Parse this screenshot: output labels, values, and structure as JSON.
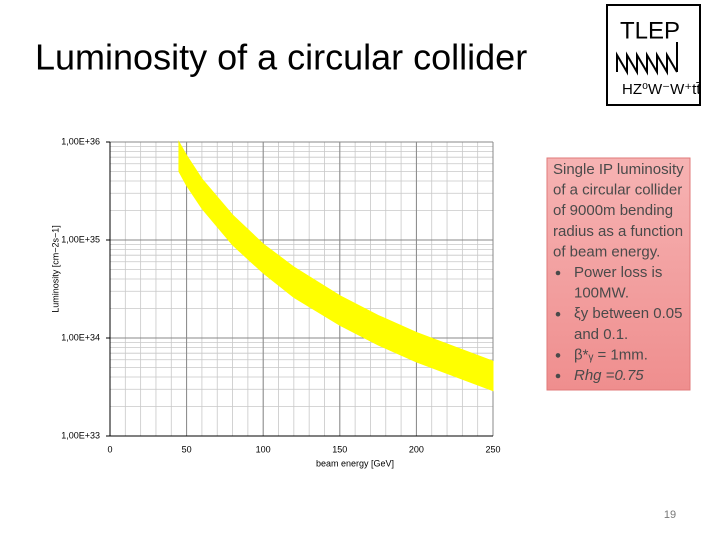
{
  "header": {
    "title": "Luminosity of a circular collider",
    "logo": {
      "name": "TLEP",
      "subtitle": "HZ⁰W⁻W⁺tt̄"
    }
  },
  "chart_data": {
    "type": "band",
    "x_label": "beam energy [GeV]",
    "y_label": "Luminosity [cm−2s−1]",
    "x": [
      45,
      50,
      60,
      80,
      100,
      120,
      150,
      175,
      200,
      250
    ],
    "band": {
      "color": "#ffff00",
      "upper": [
        1e+36,
        7.3e+35,
        4.2e+35,
        1.8e+35,
        9.1e+34,
        5.3e+34,
        2.7e+34,
        1.7e+34,
        1.14e+34,
        5.8e+33
      ],
      "lower": [
        5e+35,
        3.6e+35,
        2.1e+35,
        8.9e+34,
        4.6e+34,
        2.6e+34,
        1.35e+34,
        8.5e+33,
        5.7e+33,
        2.9e+33
      ]
    },
    "xlim": [
      0,
      250
    ],
    "xticks": [
      0,
      50,
      100,
      150,
      200,
      250
    ],
    "ylim": [
      1e+33,
      1e+36
    ],
    "log_y": true,
    "yticks": [
      {
        "value": 1e+33,
        "label": "1,00E+33"
      },
      {
        "value": 1e+34,
        "label": "1,00E+34"
      },
      {
        "value": 1e+35,
        "label": "1,00E+35"
      },
      {
        "value": 1e+36,
        "label": "1,00E+36"
      }
    ],
    "grid": true
  },
  "note": {
    "lines": [
      "Single IP luminosity",
      "of a circular collider",
      "of 9000m bending",
      "radius as a function",
      "of  beam energy."
    ],
    "bullets": [
      [
        "Power loss is",
        "100MW."
      ],
      [
        "ξy between 0.05",
        "and 0.1."
      ],
      [
        "β*ᵧ = 1mm."
      ],
      [
        "Rhg =0.75"
      ]
    ]
  },
  "footer": {
    "page": "19"
  }
}
